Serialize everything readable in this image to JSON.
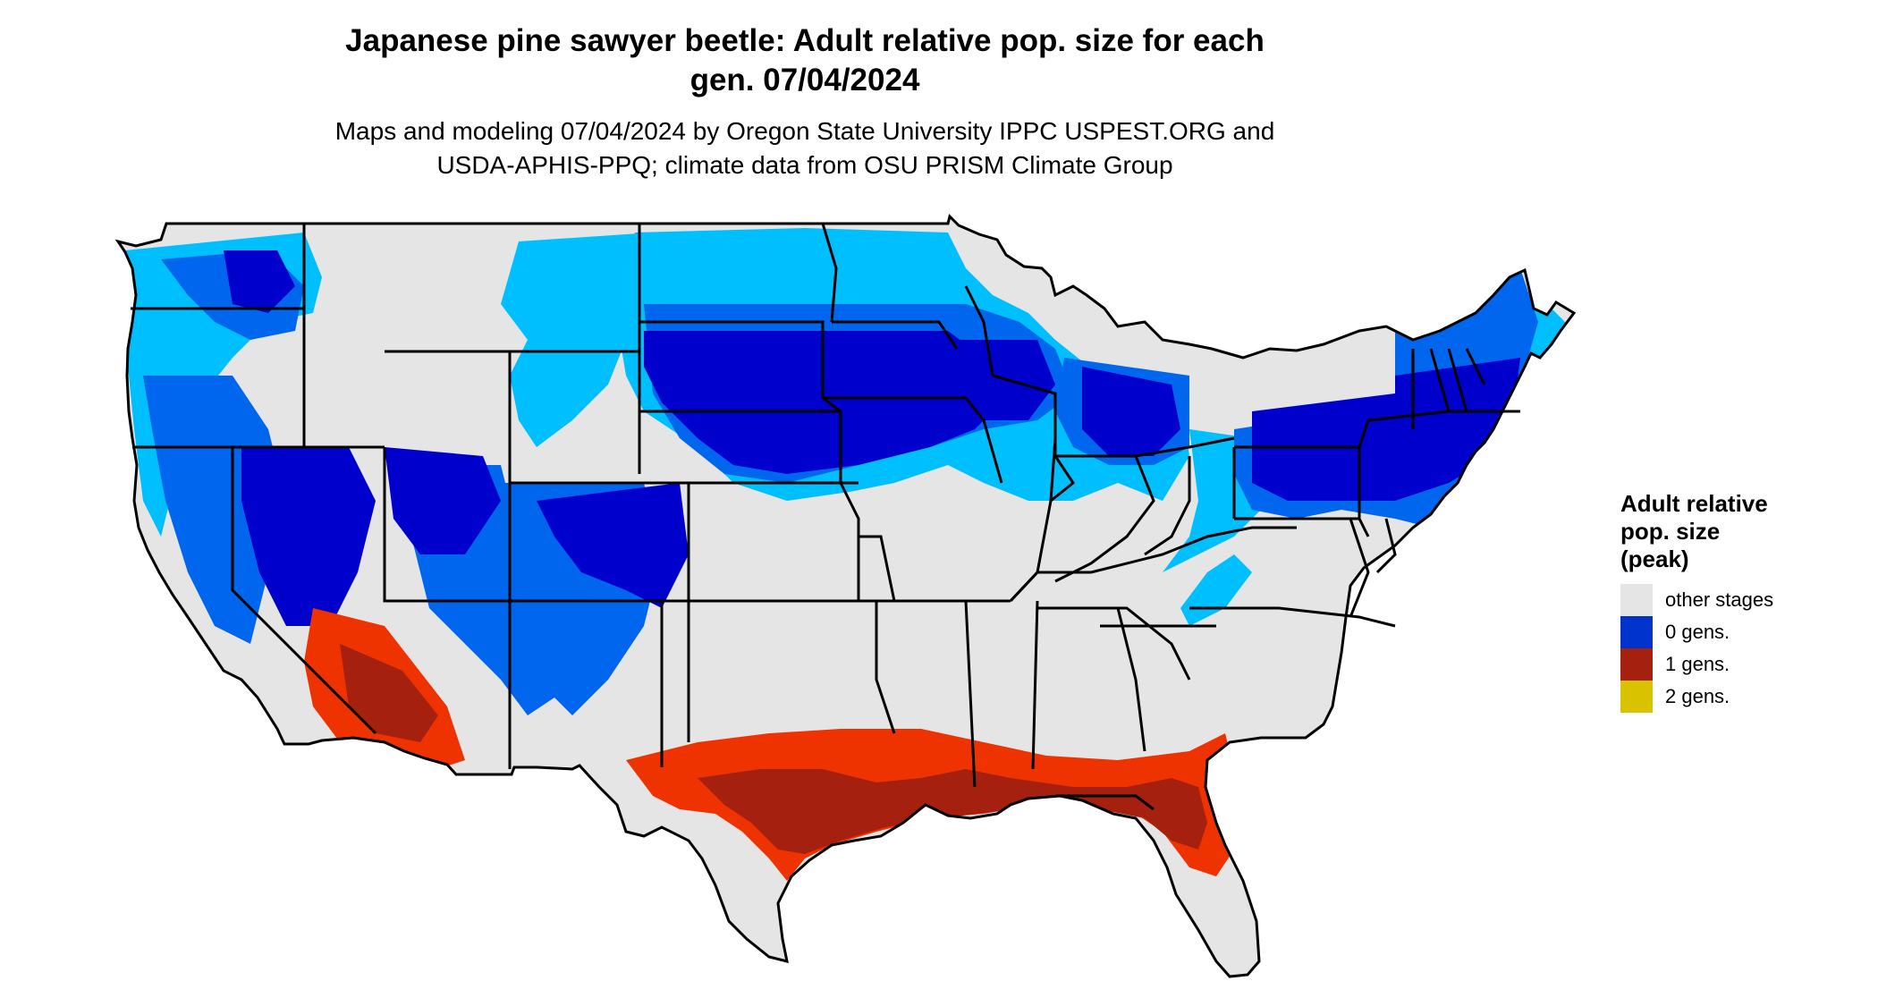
{
  "title": {
    "line1": "Japanese pine sawyer beetle: Adult relative pop. size for each",
    "line2": "gen. 07/04/2024"
  },
  "subtitle": {
    "line1": "Maps and modeling 07/04/2024 by Oregon State University IPPC USPEST.ORG and",
    "line2": "USDA-APHIS-PPQ; climate data from OSU PRISM Climate Group"
  },
  "legend": {
    "title_lines": [
      "Adult relative",
      "pop. size",
      "(peak)"
    ],
    "items": [
      {
        "label": "other stages",
        "color": "#e5e5e5"
      },
      {
        "label": "0 gens.",
        "color": "#0033cc"
      },
      {
        "label": "1 gens.",
        "color": "#a6200f"
      },
      {
        "label": "2 gens.",
        "color": "#d9c200"
      }
    ]
  },
  "map_colors": {
    "background": "#e5e5e5",
    "light_blue": "#00bfff",
    "mid_blue": "#0066ee",
    "dark_blue": "#0000cc",
    "orange_red": "#ee3300",
    "dark_red": "#a6200f",
    "yellow": "#ffff00",
    "border": "#000000"
  }
}
